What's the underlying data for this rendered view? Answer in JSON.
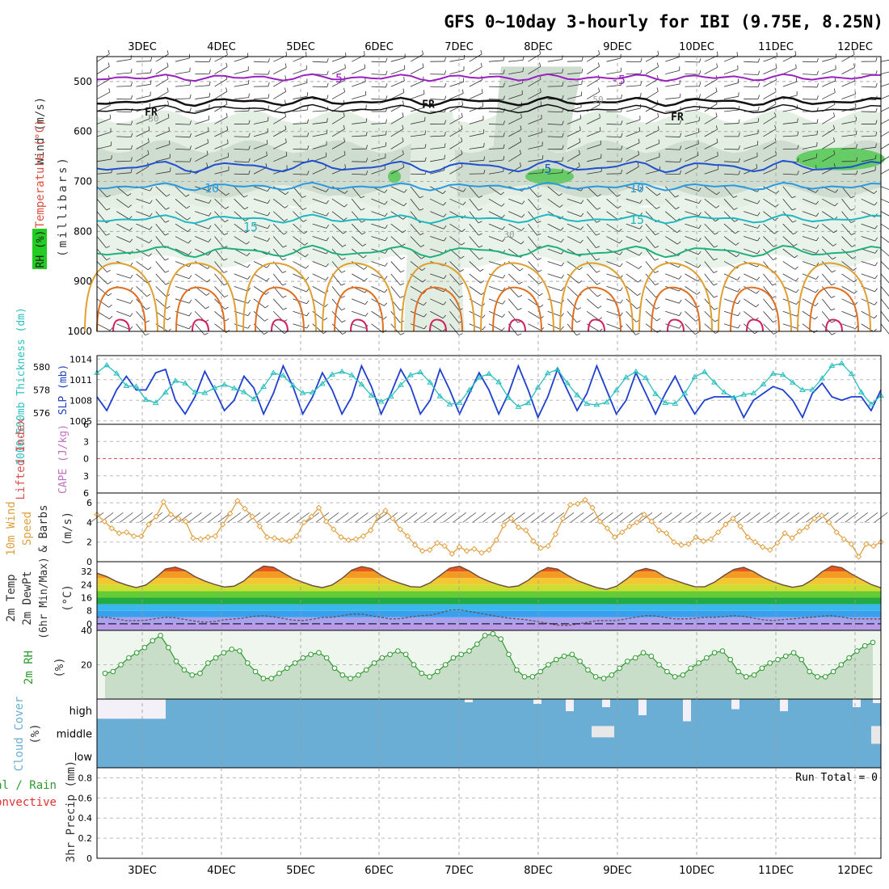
{
  "title": "GFS 0~10day 3-hourly for IBI (9.75E, 8.25N)",
  "days": [
    "3DEC",
    "4DEC",
    "5DEC",
    "6DEC",
    "7DEC",
    "8DEC",
    "9DEC",
    "10DEC",
    "11DEC",
    "12DEC"
  ],
  "colors": {
    "slp": "#1f3fcf",
    "thickness": "#2bbfbf",
    "wind10m": "#e0a040",
    "rh2m": "#2e9a2e",
    "rh_fill": "#c9dec9",
    "cloud": "#6aaed6",
    "cloud_clear": "#f4f0f8",
    "grid": "#999999",
    "lifted_zero": "#e05050",
    "iso_m5": "#9a20c0",
    "iso_fr": "#111111",
    "iso_5": "#2050d0",
    "iso_10": "#2a9ae0",
    "iso_15": "#20b8c0",
    "iso_20": "#20b080",
    "iso_25": "#e0a030",
    "iso_30": "#e07020",
    "iso_35": "#d02060"
  },
  "panels": {
    "upper_air": {
      "labels": {
        "wind": "Wind (m/s)",
        "temperature": "Temperature (°C)",
        "rh": "RH (%)",
        "levels": "(millibars)"
      },
      "y_ticks": [
        "500",
        "600",
        "700",
        "800",
        "900",
        "1000"
      ],
      "isotherm_labels": {
        "m5": "-5",
        "fr": "FR",
        "p5": "5",
        "p10": "10",
        "p15": "15",
        "rh30": "30",
        "rh50": "50"
      }
    },
    "slp_thickness": {
      "labels": {
        "thickness": "1000-500mb Thickness (dm)",
        "slp": "SLP (mb)"
      },
      "left_ticks": [
        "580",
        "578",
        "576"
      ],
      "right_ticks": [
        "1014",
        "1011",
        "1008",
        "1005"
      ]
    },
    "instability": {
      "labels": {
        "lifted": "Lifted Index",
        "cape": "CAPE (J/kg)"
      },
      "ticks": [
        "-6",
        "-3",
        "0",
        "3",
        "6"
      ]
    },
    "wind10m": {
      "labels": {
        "l1": "10m Wind",
        "l2": "Speed",
        "l3": "& Barbs",
        "unit": "(m/s)"
      },
      "ticks": [
        "6",
        "4",
        "2",
        "0"
      ]
    },
    "temp2m": {
      "labels": {
        "l1": "2m Temp",
        "l2": "2m DewPt",
        "l3": "(6hr Min/Max)",
        "unit": "(°C)"
      },
      "ticks": [
        "32",
        "24",
        "16",
        "8",
        "0"
      ]
    },
    "rh2m": {
      "labels": {
        "l1": "2m RH",
        "unit": "(%)"
      },
      "ticks": [
        "40",
        "20"
      ]
    },
    "cloud": {
      "labels": {
        "title": "Cloud Cover",
        "unit": "(%)",
        "high": "high",
        "middle": "middle",
        "low": "low"
      }
    },
    "precip": {
      "labels": {
        "total": "Total / Rain",
        "conv": "Convective",
        "axis": "3hr Precip (mm)",
        "run_total": "Run Total = 0"
      },
      "ticks": [
        "0.8",
        "0.6",
        "0.4",
        "0.2",
        "0"
      ]
    }
  },
  "chart_data": [
    {
      "type": "line",
      "title": "1000-500mb Thickness (dm) / SLP (mb)",
      "x_unit": "3-hourly steps from 3DEC",
      "series": [
        {
          "name": "SLP (mb)",
          "axis": "right",
          "ylim": [
            1004.5,
            1014.5
          ],
          "values": [
            1008.5,
            1006.5,
            1009.5,
            1011.5,
            1009.5,
            1009.5,
            1012,
            1012.5,
            1008,
            1006,
            1008.5,
            1012.2,
            1009.5,
            1006.5,
            1008,
            1011.5,
            1009.8,
            1006,
            1009,
            1013,
            1010,
            1006,
            1008.5,
            1012,
            1009.5,
            1006,
            1008.5,
            1013,
            1010,
            1006,
            1009,
            1012.5,
            1010,
            1006,
            1008,
            1012.5,
            1009.5,
            1006,
            1009,
            1012,
            1009.5,
            1006,
            1009,
            1013,
            1009.5,
            1005.5,
            1008.5,
            1012.5,
            1009.5,
            1006.5,
            1009,
            1013,
            1009.5,
            1006,
            1008,
            1012,
            1009,
            1006,
            1009,
            1011.5,
            1008.5,
            1006,
            1008,
            1008.5,
            1008.5,
            1008.5,
            1005.5,
            1008,
            1009,
            1010,
            1009.5,
            1008,
            1005.5,
            1009,
            1010.5,
            1008.5,
            1008,
            1008.5,
            1008.5,
            1006.5,
            1009.5
          ]
        },
        {
          "name": "1000-500mb Thickness (dm)",
          "axis": "left",
          "ylim": [
            575,
            581
          ],
          "values": [
            579.5,
            580.2,
            579.6,
            578.3,
            578.6,
            577.4,
            576.6,
            577.3,
            578.4,
            579.2,
            578.1,
            577.6,
            577.8,
            578.3,
            578.5,
            578.1,
            577.8,
            577.2,
            578.2,
            579.5,
            579.4,
            578.6,
            577.8,
            577.6,
            578.1,
            579.1,
            579.6,
            579.6,
            579.1,
            578.2,
            577.3,
            576.9,
            577.5,
            578.5,
            579.3,
            579.6,
            578.8,
            577.6,
            576.8,
            576.6,
            577.5,
            578.8,
            579.5,
            579.3,
            578.2,
            576.8,
            576.4,
            577.0,
            578.5,
            579.6,
            579.8,
            578.6,
            577.6,
            576.8,
            576.7,
            576.7,
            577.6,
            578.8,
            579.6,
            579.6,
            578.5,
            577.0,
            576.8,
            576.8,
            578.0,
            579.4,
            579.6,
            578.6,
            577.8,
            577.3,
            577.6,
            577.6,
            578.2,
            579.4,
            579.5,
            579.0,
            578.2,
            577.8,
            578.2,
            579.5,
            580.4,
            580.3,
            579.2,
            577.6,
            576.7,
            577.5
          ]
        }
      ]
    },
    {
      "type": "line",
      "title": "10m Wind Speed (m/s)",
      "ylim": [
        0,
        7
      ],
      "series": [
        {
          "name": "Speed",
          "values": [
            4.8,
            4.1,
            3.4,
            2.9,
            3.0,
            2.6,
            2.6,
            3.8,
            4.6,
            6.1,
            4.8,
            4.4,
            4.1,
            2.4,
            2.3,
            2.5,
            2.6,
            3.8,
            4.9,
            6.2,
            5.4,
            4.6,
            3.6,
            2.5,
            2.4,
            2.2,
            2.1,
            2.6,
            4.0,
            4.6,
            5.5,
            4.1,
            3.3,
            2.5,
            2.2,
            2.3,
            2.6,
            3.2,
            4.6,
            5.2,
            4.4,
            3.3,
            2.6,
            1.7,
            1.1,
            1.2,
            1.9,
            1.6,
            0.8,
            1.5,
            1.1,
            1.3,
            0.9,
            1.2,
            2.2,
            3.7,
            4.4,
            3.5,
            3.2,
            2.1,
            1.4,
            1.6,
            2.8,
            4.4,
            5.8,
            5.9,
            6.3,
            5.5,
            4.1,
            3.4,
            2.5,
            3.0,
            3.6,
            4.0,
            4.8,
            4.1,
            3.2,
            2.9,
            2.0,
            1.7,
            1.8,
            2.5,
            2.1,
            2.3,
            3.0,
            3.8,
            4.4,
            3.6,
            2.5,
            2.0,
            1.5,
            1.2,
            1.9,
            2.9,
            2.4,
            3.1,
            3.5,
            4.4,
            4.7,
            4.0,
            3.0,
            2.3,
            1.8,
            0.5,
            1.8,
            1.6,
            2.0
          ]
        }
      ]
    },
    {
      "type": "area",
      "title": "2m Temp (°C)",
      "ylim": [
        -4,
        38
      ],
      "series": [
        {
          "name": "2m Temp",
          "values": [
            31,
            29,
            26,
            24,
            22,
            23,
            27,
            33,
            35,
            34,
            30,
            27,
            25,
            23,
            22,
            24,
            28,
            34,
            36,
            34,
            30,
            27,
            25,
            23,
            22,
            24,
            28,
            33,
            35,
            34,
            30,
            27,
            25,
            23,
            22,
            24,
            28,
            33,
            36,
            34,
            30,
            27,
            25,
            23,
            22,
            24,
            28,
            33,
            35,
            33,
            29,
            26,
            24,
            22,
            21,
            23,
            27,
            32,
            34,
            33,
            29,
            27,
            25,
            23,
            22,
            24,
            28,
            32,
            35,
            34,
            30,
            27,
            25,
            23,
            22,
            24,
            28,
            33,
            36,
            34,
            30,
            27,
            24,
            22
          ]
        },
        {
          "name": "2m DewPt",
          "values": [
            4,
            4,
            3,
            2,
            2,
            2,
            3,
            4,
            4,
            3,
            2,
            1,
            1,
            2,
            3,
            3,
            4,
            5,
            5,
            4,
            3,
            2,
            2,
            3,
            4,
            4,
            5,
            6,
            6,
            5,
            4,
            3,
            3,
            4,
            5,
            5,
            6,
            8,
            9,
            8,
            7,
            6,
            5,
            4,
            3,
            3,
            2,
            1,
            0,
            -1,
            -1,
            0,
            1,
            2,
            2,
            2,
            3,
            4,
            5,
            5,
            4,
            3,
            3,
            3,
            4,
            4,
            4,
            5,
            5,
            4,
            3,
            2,
            2,
            3,
            3,
            4,
            4,
            5,
            5,
            4,
            3,
            3,
            3,
            3
          ]
        }
      ]
    },
    {
      "type": "area",
      "title": "2m RH (%)",
      "ylim": [
        0,
        40
      ],
      "series": [
        {
          "name": "2m RH",
          "values": [
            15,
            16,
            20,
            24,
            27,
            30,
            34,
            37,
            30,
            22,
            17,
            14,
            15,
            21,
            24,
            27,
            29,
            28,
            21,
            16,
            12,
            12,
            15,
            18,
            21,
            24,
            26,
            27,
            24,
            18,
            14,
            12,
            14,
            17,
            21,
            24,
            26,
            28,
            26,
            20,
            15,
            13,
            16,
            20,
            24,
            26,
            28,
            32,
            37,
            38,
            35,
            26,
            17,
            13,
            13,
            16,
            20,
            23,
            25,
            26,
            22,
            17,
            13,
            12,
            14,
            18,
            22,
            24,
            27,
            25,
            20,
            16,
            13,
            14,
            18,
            21,
            24,
            27,
            28,
            23,
            16,
            13,
            14,
            18,
            21,
            23,
            25,
            27,
            23,
            16,
            13,
            13,
            16,
            20,
            24,
            28,
            31,
            33
          ]
        }
      ]
    },
    {
      "type": "heatmap",
      "title": "Cloud Cover (%)",
      "layers": [
        "high",
        "middle",
        "low"
      ],
      "summary": "high layer mostly overcast from late 3DEC to 7DEC, broken from 7DEC onward; middle and low layers overcast throughout with brief gaps near 9DEC and 12DEC"
    },
    {
      "type": "line",
      "title": "3hr Precip (mm)",
      "ylim": [
        0,
        0.9
      ],
      "series": [
        {
          "name": "Total / Rain",
          "values": [
            0,
            0,
            0,
            0,
            0,
            0,
            0,
            0,
            0,
            0
          ]
        }
      ],
      "annotation": "Run Total = 0"
    }
  ]
}
